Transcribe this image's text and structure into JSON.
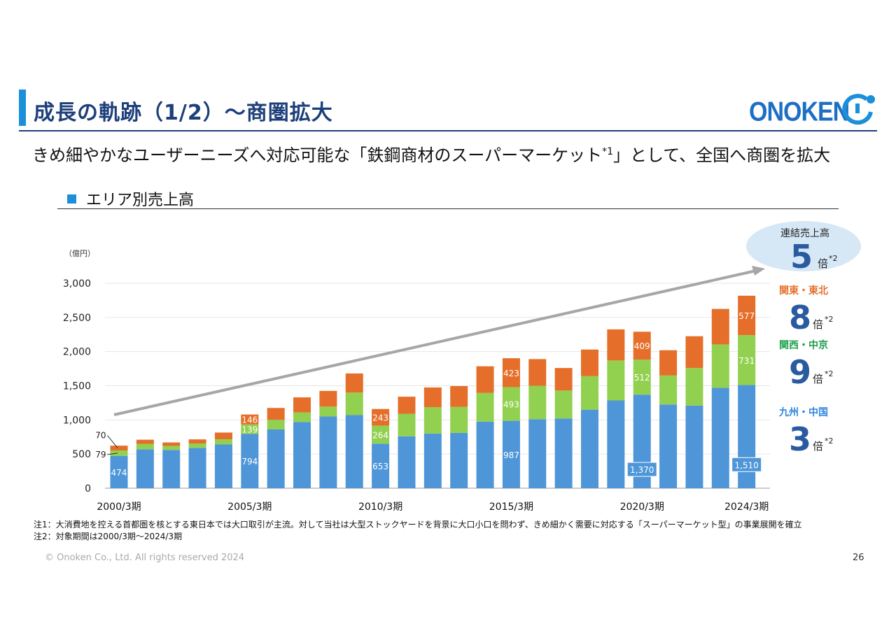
{
  "header": {
    "title": "成長の軌跡（1/2）～商圏拡大",
    "logo_text": "ONOKEN",
    "subtitle_before": "きめ細やかなユーザーニーズへ対応可能な「鉄鋼商材のスーパーマーケット",
    "subtitle_sup": "*1",
    "subtitle_after": "」として、全国へ商圏を拡大",
    "section_label": "エリア別売上高"
  },
  "colors": {
    "kanto_tohoku": "#e56f2a",
    "kansai_chukyo": "#92d050",
    "kyushu_chugoku": "#4f96d9",
    "title": "#1d3f7a",
    "accent": "#1b8fd9",
    "big_number": "#2a5aa0",
    "arrow": "#a6a6a6",
    "ellipse": "#d6e7f6"
  },
  "chart_data": {
    "type": "bar",
    "stacked": true,
    "unit_label": "（億円）",
    "ylim": [
      0,
      3000
    ],
    "yticks": [
      "0",
      "500",
      "1,000",
      "1,500",
      "2,000",
      "2,500",
      "3,000"
    ],
    "ytick_values": [
      0,
      500,
      1000,
      1500,
      2000,
      2500,
      3000
    ],
    "categories": [
      "2000/3期",
      "2001/3期",
      "2002/3期",
      "2003/3期",
      "2004/3期",
      "2005/3期",
      "2006/3期",
      "2007/3期",
      "2008/3期",
      "2009/3期",
      "2010/3期",
      "2011/3期",
      "2012/3期",
      "2013/3期",
      "2014/3期",
      "2015/3期",
      "2016/3期",
      "2017/3期",
      "2018/3期",
      "2019/3期",
      "2020/3期",
      "2021/3期",
      "2022/3期",
      "2023/3期",
      "2024/3期"
    ],
    "x_tick_labels": [
      {
        "index": 0,
        "label": "2000/3期"
      },
      {
        "index": 5,
        "label": "2005/3期"
      },
      {
        "index": 10,
        "label": "2010/3期"
      },
      {
        "index": 15,
        "label": "2015/3期"
      },
      {
        "index": 20,
        "label": "2020/3期"
      },
      {
        "index": 24,
        "label": "2024/3期"
      }
    ],
    "series": [
      {
        "name": "九州・中国",
        "color": "#4f96d9",
        "values": [
          474,
          570,
          560,
          590,
          640,
          794,
          860,
          970,
          1050,
          1070,
          653,
          760,
          800,
          810,
          975,
          987,
          1010,
          1020,
          1150,
          1285,
          1370,
          1225,
          1210,
          1470,
          1510
        ]
      },
      {
        "name": "関西・中京",
        "color": "#92d050",
        "values": [
          79,
          80,
          60,
          65,
          75,
          139,
          140,
          140,
          145,
          330,
          264,
          330,
          385,
          380,
          420,
          493,
          490,
          410,
          490,
          585,
          512,
          425,
          550,
          635,
          731
        ]
      },
      {
        "name": "関東・東北",
        "color": "#e56f2a",
        "values": [
          70,
          60,
          50,
          60,
          100,
          146,
          175,
          220,
          230,
          280,
          243,
          250,
          290,
          305,
          390,
          423,
          390,
          330,
          390,
          455,
          409,
          370,
          465,
          520,
          577
        ]
      }
    ],
    "data_labels": [
      {
        "index": 0,
        "series": 0,
        "text": "474"
      },
      {
        "index": 0,
        "series": 1,
        "text": "79",
        "callout": true
      },
      {
        "index": 0,
        "series": 2,
        "text": "70",
        "callout": true
      },
      {
        "index": 5,
        "series": 0,
        "text": "794"
      },
      {
        "index": 5,
        "series": 1,
        "text": "139"
      },
      {
        "index": 5,
        "series": 2,
        "text": "146"
      },
      {
        "index": 10,
        "series": 0,
        "text": "653"
      },
      {
        "index": 10,
        "series": 1,
        "text": "264"
      },
      {
        "index": 10,
        "series": 2,
        "text": "243"
      },
      {
        "index": 15,
        "series": 0,
        "text": "987"
      },
      {
        "index": 15,
        "series": 1,
        "text": "493"
      },
      {
        "index": 15,
        "series": 2,
        "text": "423"
      },
      {
        "index": 20,
        "series": 0,
        "text": "1,370",
        "boxed": true
      },
      {
        "index": 20,
        "series": 1,
        "text": "512"
      },
      {
        "index": 20,
        "series": 2,
        "text": "409"
      },
      {
        "index": 24,
        "series": 0,
        "text": "1,510",
        "boxed": true
      },
      {
        "index": 24,
        "series": 1,
        "text": "731"
      },
      {
        "index": 24,
        "series": 2,
        "text": "577"
      }
    ],
    "growth": {
      "total_label": "連結売上高",
      "total_multiple": "5",
      "suffix": "倍",
      "sup": "*2",
      "regions": [
        {
          "name": "関東・東北",
          "multiple": "8",
          "color": "#e56f2a"
        },
        {
          "name": "関西・中京",
          "multiple": "9",
          "color": "#1a9e4a"
        },
        {
          "name": "九州・中国",
          "multiple": "3",
          "color": "#2e86de"
        }
      ]
    }
  },
  "notes": [
    "注1：大消費地を控える首都圏を核とする東日本では大口取引が主流。対して当社は大型ストックヤードを背景に大口小口を問わず、きめ細かく需要に対応する「スーパーマーケット型」の事業展開を確立",
    "注2：対象期間は2000/3期～2024/3期"
  ],
  "footer": {
    "copyright": "© Onoken Co., Ltd. All rights reserved 2024",
    "page_number": "26"
  }
}
